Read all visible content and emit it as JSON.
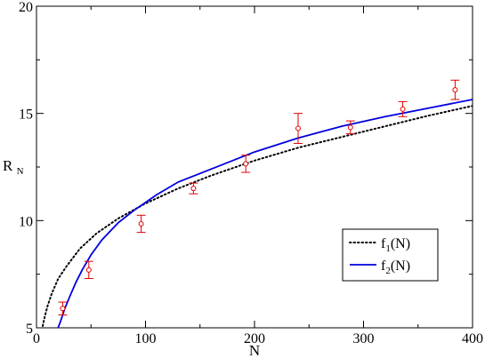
{
  "chart_data": {
    "type": "scatter",
    "xlabel": "N",
    "ylabel_main": "R",
    "ylabel_sub": "N",
    "xlim": [
      0,
      400
    ],
    "ylim": [
      5,
      20
    ],
    "x_ticks": [
      0,
      100,
      200,
      300,
      400
    ],
    "x_tick_labels": [
      "0",
      "100",
      "200",
      "300",
      "400"
    ],
    "y_ticks": [
      5,
      10,
      15,
      20
    ],
    "y_tick_labels": [
      "5",
      "10",
      "15",
      "20"
    ],
    "grid": false,
    "legend_position": "lower-right",
    "data_points": {
      "color": "#e00000",
      "points": [
        {
          "x": 24,
          "y": 5.9,
          "err": 0.3
        },
        {
          "x": 48,
          "y": 7.7,
          "err": 0.4
        },
        {
          "x": 96,
          "y": 9.85,
          "err": 0.4
        },
        {
          "x": 144,
          "y": 11.5,
          "err": 0.25
        },
        {
          "x": 192,
          "y": 12.65,
          "err": 0.4
        },
        {
          "x": 240,
          "y": 14.3,
          "err": 0.7
        },
        {
          "x": 288,
          "y": 14.35,
          "err": 0.3
        },
        {
          "x": 336,
          "y": 15.2,
          "err": 0.35
        },
        {
          "x": 384,
          "y": 16.1,
          "err": 0.45
        }
      ]
    },
    "series": [
      {
        "name": "f",
        "sub": "1",
        "suffix": "(N)",
        "color": "#000000",
        "style": "dotted",
        "x": [
          5,
          7,
          10,
          14,
          20,
          28,
          40,
          55,
          75,
          100,
          130,
          160,
          200,
          240,
          280,
          320,
          360,
          400
        ],
        "y": [
          4.9,
          5.4,
          6.0,
          6.6,
          7.3,
          7.9,
          8.7,
          9.4,
          10.1,
          10.8,
          11.5,
          12.1,
          12.8,
          13.4,
          13.9,
          14.4,
          14.9,
          15.35
        ]
      },
      {
        "name": "f",
        "sub": "2",
        "suffix": "(N)",
        "color": "#0000e0",
        "style": "solid",
        "x": [
          19,
          22,
          26,
          30,
          36,
          42,
          50,
          60,
          75,
          90,
          110,
          130,
          160,
          200,
          240,
          280,
          320,
          360,
          400
        ],
        "y": [
          4.9,
          5.3,
          5.9,
          6.4,
          7.1,
          7.7,
          8.4,
          9.1,
          9.9,
          10.5,
          11.2,
          11.8,
          12.4,
          13.2,
          13.85,
          14.4,
          14.85,
          15.25,
          15.65
        ]
      }
    ]
  }
}
